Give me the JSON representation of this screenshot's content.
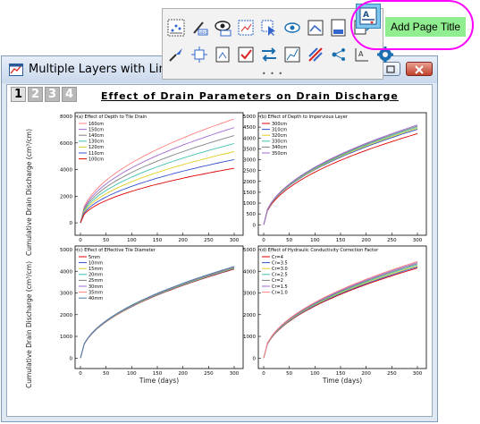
{
  "window": {
    "title": "Multiple Layers with Line Plo"
  },
  "layer_tabs": [
    "1",
    "2",
    "3",
    "4"
  ],
  "page_title": "Effect of Drain Parameters on Drain Discharge",
  "tooltip": "Add Page Title",
  "toolbar": {
    "row1_icons": [
      "scatter-plot-icon",
      "brush-abc-icon",
      "eye-abc-icon",
      "select-data-icon",
      "pointer-select-icon",
      "eye-layer-icon",
      "layer-select-icon",
      "page-icon",
      "export-page-icon"
    ],
    "row2_icons": [
      "quill-brush-icon",
      "arrange-layers-icon",
      "layer-fit-icon",
      "check-layer-icon",
      "swap-layers-icon",
      "rescale-icon",
      "no-line-icon",
      "network-icon",
      "text-layer-icon",
      "settings-gear-icon"
    ],
    "highlight_icon": "add-page-title-icon"
  },
  "chart_data": [
    {
      "type": "line",
      "title": "(a) Effect of Depth to Tile Drain",
      "xlabel": "",
      "ylabel": "Cumulative Drain Discharge (cm³/cm)",
      "xlim": [
        0,
        300
      ],
      "ylim": [
        -800,
        8000
      ],
      "xticks": [
        "0",
        "50",
        "100",
        "150",
        "200",
        "250",
        "300"
      ],
      "yticks": [
        "0",
        "2000",
        "4000",
        "6000",
        "8000"
      ],
      "series": [
        {
          "name": "160cm",
          "color": "#ff8080",
          "end": 7800
        },
        {
          "name": "150cm",
          "color": "#a06ad0",
          "end": 7150
        },
        {
          "name": "140cm",
          "color": "#808080",
          "end": 6550
        },
        {
          "name": "130cm",
          "color": "#40c0b0",
          "end": 5950
        },
        {
          "name": "120cm",
          "color": "#e0d020",
          "end": 5350
        },
        {
          "name": "110cm",
          "color": "#3050d0",
          "end": 4750
        },
        {
          "name": "100cm",
          "color": "#e00000",
          "end": 4100
        }
      ]
    },
    {
      "type": "line",
      "title": "(b) Effect of Depth to Impervious Layer",
      "xlabel": "",
      "ylabel": "",
      "xlim": [
        0,
        300
      ],
      "ylim": [
        -400,
        5000
      ],
      "xticks": [
        "0",
        "50",
        "100",
        "150",
        "200",
        "250",
        "300"
      ],
      "yticks": [
        "0",
        "500",
        "1000",
        "1500",
        "2000",
        "2500",
        "3000",
        "3500",
        "4000",
        "4500",
        "5000"
      ],
      "series": [
        {
          "name": "300cm",
          "color": "#e00000",
          "end": 4200
        },
        {
          "name": "310cm",
          "color": "#3050d0",
          "end": 4400
        },
        {
          "name": "320cm",
          "color": "#e0d020",
          "end": 4450
        },
        {
          "name": "330cm",
          "color": "#40c0b0",
          "end": 4500
        },
        {
          "name": "340cm",
          "color": "#808080",
          "end": 4550
        },
        {
          "name": "350cm",
          "color": "#a06ad0",
          "end": 4600
        }
      ]
    },
    {
      "type": "line",
      "title": "(c) Effect of Effective Tile Diameter",
      "xlabel": "Time (days)",
      "ylabel": "Cumulative Drain Discharge (cm³/cm)",
      "xlim": [
        0,
        300
      ],
      "ylim": [
        -400,
        5000
      ],
      "xticks": [
        "0",
        "50",
        "100",
        "150",
        "200",
        "250",
        "300"
      ],
      "yticks": [
        "0",
        "1000",
        "2000",
        "3000",
        "4000",
        "5000"
      ],
      "series": [
        {
          "name": "5mm",
          "color": "#e00000",
          "end": 4100
        },
        {
          "name": "10mm",
          "color": "#3050d0",
          "end": 4120
        },
        {
          "name": "15mm",
          "color": "#e0d020",
          "end": 4140
        },
        {
          "name": "20mm",
          "color": "#40c0b0",
          "end": 4160
        },
        {
          "name": "25mm",
          "color": "#808080",
          "end": 4180
        },
        {
          "name": "30mm",
          "color": "#a06ad0",
          "end": 4200
        },
        {
          "name": "35mm",
          "color": "#ff8080",
          "end": 4210
        },
        {
          "name": "40mm",
          "color": "#4080b0",
          "end": 4220
        }
      ]
    },
    {
      "type": "line",
      "title": "(d) Effect of Hydraulic Conductivity Correction Factor",
      "xlabel": "Time (days)",
      "ylabel": "",
      "xlim": [
        0,
        300
      ],
      "ylim": [
        -400,
        5000
      ],
      "xticks": [
        "0",
        "50",
        "100",
        "150",
        "200",
        "250",
        "300"
      ],
      "yticks": [
        "0",
        "1000",
        "2000",
        "3000",
        "4000",
        "5000"
      ],
      "series": [
        {
          "name": "Cr=4",
          "color": "#e00000",
          "end": 4150
        },
        {
          "name": "Cr=3.5",
          "color": "#3050d0",
          "end": 4200
        },
        {
          "name": "Cr=3.0",
          "color": "#e0d020",
          "end": 4250
        },
        {
          "name": "Cr=2.5",
          "color": "#40c0b0",
          "end": 4300
        },
        {
          "name": "Cr=2",
          "color": "#808080",
          "end": 4350
        },
        {
          "name": "Cr=1.5",
          "color": "#a06ad0",
          "end": 4400
        },
        {
          "name": "Cr=1.0",
          "color": "#ff8080",
          "end": 4450
        }
      ]
    }
  ]
}
